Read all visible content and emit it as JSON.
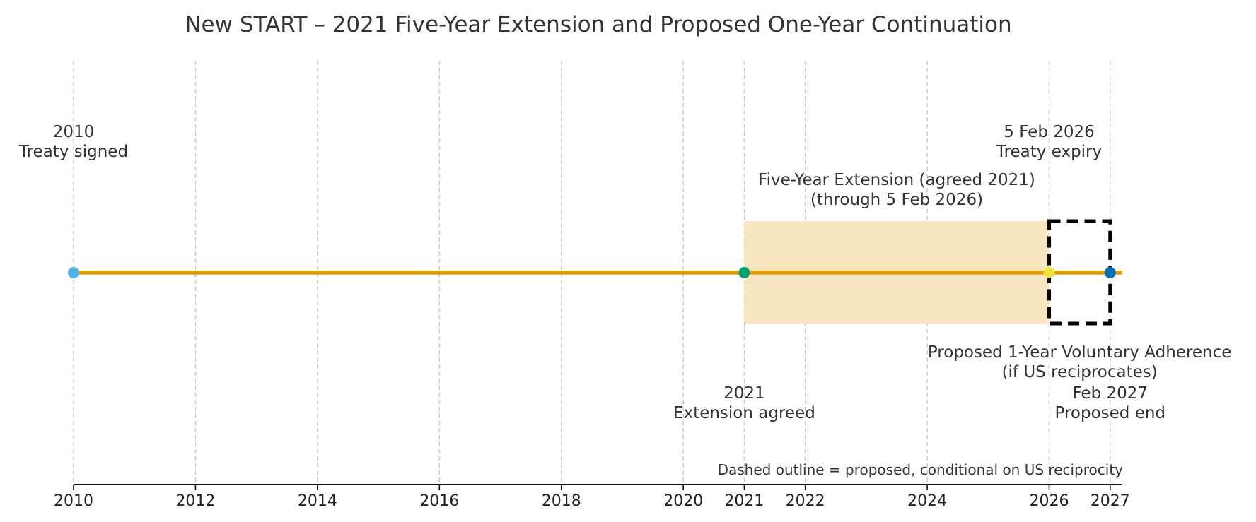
{
  "chart_data": {
    "type": "timeline",
    "title": "New START – 2021 Five-Year Extension and Proposed One-Year Continuation",
    "xlim": [
      2010,
      2027.2
    ],
    "x_ticks": [
      2010,
      2012,
      2014,
      2016,
      2018,
      2020,
      2021,
      2022,
      2024,
      2026,
      2027
    ],
    "grid": true,
    "timeline": {
      "start": 2010,
      "end": 2027.2,
      "color": "#E69F00"
    },
    "spans": [
      {
        "name": "five-year-extension",
        "start": 2021,
        "end": 2026,
        "style": "filled",
        "color": "#F7E6C0",
        "label_lines": [
          "Five-Year Extension (agreed 2021)",
          "(through 5 Feb 2026)"
        ],
        "label_position": "above"
      },
      {
        "name": "proposed-adherence",
        "start": 2026,
        "end": 2027,
        "style": "dashed-outline",
        "color": "#000000",
        "label_lines": [
          "Proposed 1-Year Voluntary Adherence",
          "(if US reciprocates)"
        ],
        "label_position": "below"
      }
    ],
    "events": [
      {
        "name": "treaty-signed",
        "x": 2010,
        "color": "#56B4E9",
        "label_lines": [
          "2010",
          "Treaty signed"
        ],
        "label_position": "above"
      },
      {
        "name": "extension-agreed",
        "x": 2021,
        "color": "#009E73",
        "label_lines": [
          "2021",
          "Extension agreed"
        ],
        "label_position": "below"
      },
      {
        "name": "treaty-expiry",
        "x": 2026,
        "color": "#F0E442",
        "label_lines": [
          "5 Feb 2026",
          "Treaty expiry"
        ],
        "label_position": "above"
      },
      {
        "name": "proposed-end",
        "x": 2027,
        "color": "#0072B2",
        "label_lines": [
          "Feb 2027",
          "Proposed end"
        ],
        "label_position": "below"
      }
    ],
    "annotation": "Dashed outline = proposed, conditional on US reciprocity"
  }
}
